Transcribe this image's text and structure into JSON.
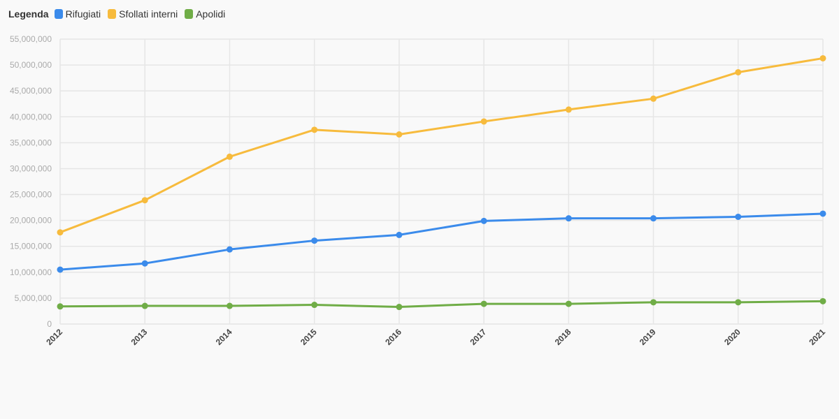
{
  "legend": {
    "title": "Legenda"
  },
  "chart_data": {
    "type": "line",
    "x": [
      "2012",
      "2013",
      "2014",
      "2015",
      "2016",
      "2017",
      "2018",
      "2019",
      "2020",
      "2021"
    ],
    "ylim": [
      0,
      55000000
    ],
    "yticks": [
      0,
      5000000,
      10000000,
      15000000,
      20000000,
      25000000,
      30000000,
      35000000,
      40000000,
      45000000,
      50000000,
      55000000
    ],
    "ytick_labels": [
      "0",
      "5,000,000",
      "10,000,000",
      "15,000,000",
      "20,000,000",
      "25,000,000",
      "30,000,000",
      "35,000,000",
      "40,000,000",
      "45,000,000",
      "50,000,000",
      "55,000,000"
    ],
    "grid": true,
    "legend_position": "top-left",
    "series": [
      {
        "name": "Rifugiati",
        "color": "#3b8beb",
        "values": [
          10500000,
          11700000,
          14400000,
          16100000,
          17200000,
          19900000,
          20400000,
          20400000,
          20700000,
          21300000
        ]
      },
      {
        "name": "Sfollati interni",
        "color": "#f7bb3d",
        "values": [
          17700000,
          23900000,
          32300000,
          37500000,
          36600000,
          39100000,
          41400000,
          43500000,
          48600000,
          51300000
        ]
      },
      {
        "name": "Apolidi",
        "color": "#70ad47",
        "values": [
          3400000,
          3500000,
          3500000,
          3700000,
          3300000,
          3900000,
          3900000,
          4200000,
          4200000,
          4400000
        ]
      }
    ]
  }
}
